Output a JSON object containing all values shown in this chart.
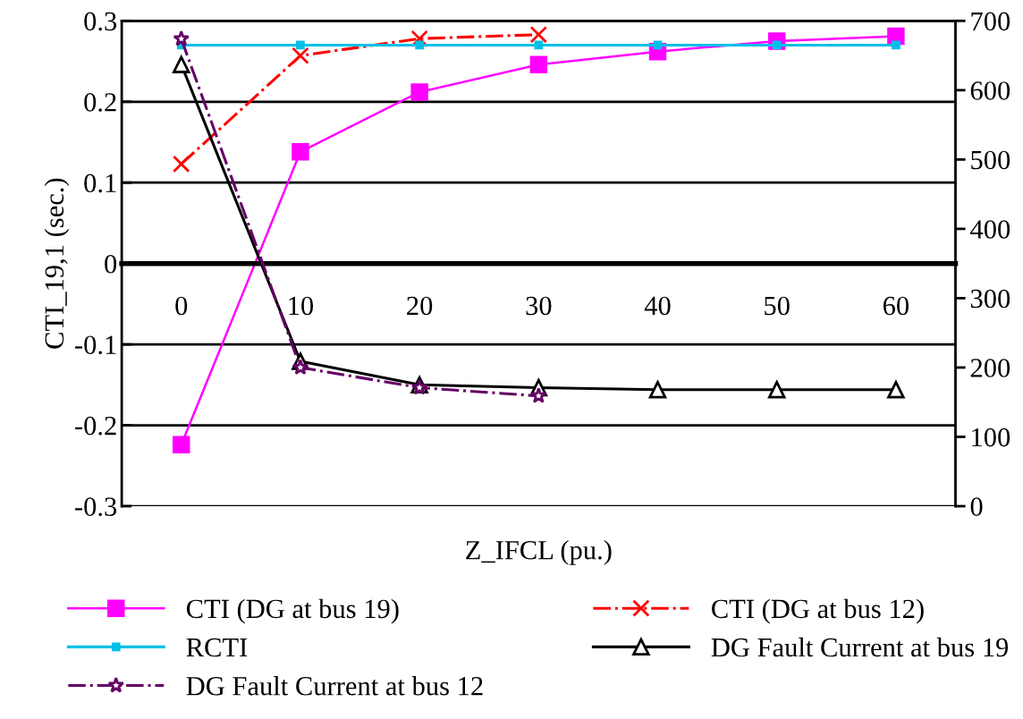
{
  "chart_data": {
    "type": "line",
    "xlabel": "Z_IFCL (pu.)",
    "ylabel": "CTI_19,1 (sec.)",
    "categories": [
      "0",
      "10",
      "20",
      "30",
      "40",
      "50",
      "60"
    ],
    "ylim": [
      -0.3,
      0.3
    ],
    "yticks": [
      -0.3,
      -0.2,
      -0.1,
      0,
      0.1,
      0.2,
      0.3
    ],
    "y2lim": [
      0,
      700
    ],
    "y2ticks": [
      0,
      100,
      200,
      300,
      400,
      500,
      600,
      700
    ],
    "grid": "y",
    "legend": "bottom",
    "series": [
      {
        "name": "CTI (DG at bus 19)",
        "color": "#ff00ff",
        "marker": "square",
        "line_style": "solid",
        "values": [
          -0.224,
          0.138,
          0.212,
          0.246,
          0.262,
          0.275,
          0.281
        ]
      },
      {
        "name": "CTI (DG at bus 12)",
        "color": "#ff0000",
        "marker": "cross",
        "line_style": "dashdot",
        "values": [
          0.123,
          0.257,
          0.278,
          0.283,
          null,
          null,
          null
        ]
      },
      {
        "name": "RCTI",
        "color": "#00c0e8",
        "marker": "square",
        "line_style": "solid",
        "values": [
          0.27,
          0.27,
          0.27,
          0.27,
          0.27,
          0.27,
          0.27
        ]
      },
      {
        "name": "DG Fault Current at bus 19",
        "color": "#000000",
        "marker": "triangle",
        "line_style": "solid",
        "axis": "y2",
        "values": [
          637,
          209,
          175,
          171,
          168,
          168,
          168
        ]
      },
      {
        "name": "DG Fault Current at bus 12",
        "color": "#660066",
        "marker": "star",
        "line_style": "dashdot",
        "axis": "y2",
        "values": [
          674,
          200,
          171,
          159,
          null,
          null,
          null
        ]
      }
    ]
  }
}
